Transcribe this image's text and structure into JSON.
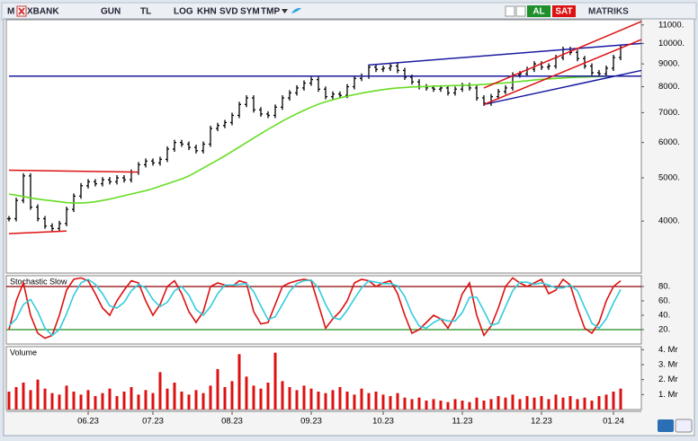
{
  "toolbar": {
    "menu": "M",
    "symbol": "XBANK",
    "buttons": [
      "GUN",
      "TL",
      "LOG",
      "KHN",
      "SVD",
      "SYM",
      "TMP"
    ],
    "buy": "AL",
    "sell": "SAT",
    "brand": "MATRIKS"
  },
  "chart_data": [
    {
      "type": "ohlc",
      "log_scale": true,
      "ylim": [
        3060,
        11300
      ],
      "yticks": [
        {
          "value": 4000,
          "label": "4000."
        },
        {
          "value": 5000,
          "label": "5000."
        },
        {
          "value": 6000,
          "label": "6000."
        },
        {
          "value": 7000,
          "label": "7000."
        },
        {
          "value": 8000,
          "label": "8000."
        },
        {
          "value": 9000,
          "label": "9000."
        },
        {
          "value": 10000,
          "label": "10000."
        },
        {
          "value": 11000,
          "label": "11000."
        }
      ],
      "series": [
        {
          "color": "#000000",
          "values": [
            4050,
            4450,
            5050,
            4300,
            4050,
            3900,
            3850,
            3950,
            4250,
            4550,
            4800,
            4900,
            4850,
            4950,
            4900,
            5000,
            4950,
            5150,
            5350,
            5450,
            5400,
            5500,
            5800,
            6000,
            5950,
            5850,
            5750,
            5950,
            6450,
            6550,
            6650,
            6900,
            7300,
            7550,
            7100,
            6950,
            6900,
            7200,
            7550,
            7750,
            7950,
            8150,
            8300,
            7900,
            7600,
            7700,
            7650,
            8000,
            8350,
            8450,
            8850,
            8750,
            8800,
            8900,
            8700,
            8400,
            8200,
            8000,
            7950,
            7900,
            7950,
            7750,
            7900,
            8050,
            7950,
            7550,
            7350,
            7600,
            7800,
            7950,
            8500,
            8550,
            8750,
            9000,
            8850,
            8900,
            9300,
            9700,
            9550,
            9250,
            8900,
            8600,
            8550,
            8800,
            9300,
            9800
          ]
        },
        {
          "color": "#66dd22",
          "values": [
            4600,
            4570,
            4540,
            4510,
            4480,
            4460,
            4440,
            4420,
            4400,
            4390,
            4390,
            4400,
            4420,
            4450,
            4480,
            4520,
            4560,
            4600,
            4640,
            4680,
            4730,
            4790,
            4850,
            4910,
            4970,
            5050,
            5150,
            5260,
            5370,
            5480,
            5600,
            5730,
            5860,
            6000,
            6140,
            6280,
            6420,
            6560,
            6700,
            6830,
            6960,
            7080,
            7200,
            7310,
            7400,
            7480,
            7550,
            7620,
            7680,
            7740,
            7790,
            7840,
            7880,
            7920,
            7950,
            7970,
            7990,
            8000,
            8010,
            8020,
            8030,
            8040,
            8050,
            8060,
            8070,
            8080,
            8100,
            8120,
            8140,
            8160,
            8190,
            8220,
            8250,
            8280,
            8310,
            8330,
            8350,
            8370,
            8390,
            8400,
            8410,
            8420,
            8430,
            8440,
            8450,
            8460
          ]
        }
      ],
      "trendlines": [
        {
          "color": "#dd1111",
          "points": [
            [
              0,
              5200
            ],
            [
              18,
              5150
            ]
          ]
        },
        {
          "color": "#dd1111",
          "points": [
            [
              0,
              3750
            ],
            [
              8,
              3800
            ]
          ]
        },
        {
          "color": "#1a1aa0",
          "points": [
            [
              0,
              8450
            ],
            [
              88,
              8450
            ]
          ]
        },
        {
          "color": "#1a1aa0",
          "points": [
            [
              50,
              8950
            ],
            [
              88,
              10000
            ]
          ]
        },
        {
          "color": "#1a1aa0",
          "points": [
            [
              66,
              7300
            ],
            [
              88,
              8700
            ]
          ]
        },
        {
          "color": "#dd1111",
          "points": [
            [
              66,
              7950
            ],
            [
              88,
              11200
            ]
          ]
        },
        {
          "color": "#dd1111",
          "points": [
            [
              66,
              7300
            ],
            [
              88,
              10200
            ]
          ]
        }
      ]
    },
    {
      "type": "line",
      "title": "Stochastic Slow",
      "ylim": [
        0,
        95
      ],
      "yticks": [
        {
          "value": 20,
          "label": "20."
        },
        {
          "value": 40,
          "label": "40."
        },
        {
          "value": 60,
          "label": "60."
        },
        {
          "value": 80,
          "label": "80."
        }
      ],
      "levels": [
        {
          "value": 80,
          "color": "#8b0000"
        },
        {
          "value": 20,
          "color": "#1e8b1e"
        }
      ],
      "series": [
        {
          "color": "#dd1111",
          "values": [
            20,
            60,
            85,
            40,
            15,
            8,
            12,
            40,
            75,
            90,
            92,
            88,
            70,
            50,
            40,
            60,
            75,
            88,
            85,
            60,
            40,
            55,
            80,
            88,
            70,
            45,
            30,
            45,
            80,
            85,
            82,
            80,
            88,
            85,
            45,
            28,
            30,
            55,
            80,
            85,
            88,
            90,
            88,
            55,
            22,
            35,
            45,
            60,
            85,
            90,
            88,
            80,
            85,
            88,
            70,
            40,
            15,
            20,
            30,
            40,
            35,
            22,
            40,
            70,
            85,
            40,
            12,
            25,
            50,
            80,
            92,
            85,
            80,
            85,
            90,
            70,
            75,
            90,
            82,
            50,
            22,
            15,
            30,
            60,
            80,
            88
          ]
        },
        {
          "color": "#33ccdd",
          "values": [
            25,
            35,
            55,
            62,
            45,
            22,
            12,
            20,
            42,
            68,
            85,
            90,
            83,
            70,
            53,
            50,
            58,
            74,
            83,
            78,
            62,
            52,
            58,
            74,
            80,
            68,
            48,
            40,
            52,
            70,
            82,
            82,
            83,
            84,
            73,
            53,
            34,
            38,
            55,
            73,
            84,
            88,
            89,
            78,
            55,
            37,
            34,
            47,
            63,
            78,
            88,
            86,
            84,
            84,
            81,
            66,
            42,
            25,
            22,
            30,
            35,
            32,
            32,
            44,
            65,
            65,
            46,
            26,
            29,
            52,
            74,
            86,
            86,
            83,
            85,
            82,
            78,
            78,
            82,
            74,
            51,
            29,
            22,
            35,
            57,
            76
          ]
        }
      ]
    },
    {
      "type": "bar",
      "title": "Volume",
      "ylim": [
        0,
        4.2
      ],
      "color": "#dd1111",
      "yticks": [
        {
          "value": 1,
          "label": "1. Mr"
        },
        {
          "value": 2,
          "label": "2. Mr"
        },
        {
          "value": 3,
          "label": "3. Mr"
        },
        {
          "value": 4,
          "label": "4. Mr"
        }
      ],
      "categories": [
        null,
        null,
        null,
        null,
        null,
        null,
        null,
        null,
        null,
        null,
        null,
        "06.23",
        null,
        null,
        null,
        null,
        null,
        null,
        null,
        null,
        "07.23",
        null,
        null,
        null,
        null,
        null,
        null,
        null,
        null,
        null,
        null,
        "08.23",
        null,
        null,
        null,
        null,
        null,
        null,
        null,
        null,
        null,
        null,
        "09.23",
        null,
        null,
        null,
        null,
        null,
        null,
        null,
        null,
        null,
        "10.23",
        null,
        null,
        null,
        null,
        null,
        null,
        null,
        null,
        null,
        null,
        "11.23",
        null,
        null,
        null,
        null,
        null,
        null,
        null,
        null,
        null,
        null,
        "12.23",
        null,
        null,
        null,
        null,
        null,
        null,
        null,
        null,
        null,
        "01.24",
        null
      ],
      "values": [
        1.2,
        1.5,
        1.8,
        1.3,
        2.0,
        1.4,
        1.1,
        1.0,
        1.6,
        1.2,
        1.0,
        1.3,
        0.9,
        1.1,
        1.4,
        0.9,
        1.2,
        1.5,
        1.0,
        1.3,
        1.1,
        2.5,
        1.4,
        1.8,
        1.2,
        1.0,
        1.3,
        1.1,
        1.6,
        2.7,
        1.5,
        1.9,
        3.7,
        2.2,
        1.6,
        1.4,
        1.8,
        3.8,
        1.9,
        1.5,
        1.3,
        1.6,
        1.4,
        1.2,
        1.1,
        1.3,
        1.5,
        1.2,
        1.0,
        1.4,
        1.1,
        1.2,
        1.0,
        0.9,
        1.1,
        0.8,
        0.7,
        0.8,
        0.6,
        0.7,
        0.6,
        0.5,
        0.7,
        0.6,
        0.5,
        0.8,
        0.6,
        0.7,
        0.9,
        0.8,
        1.0,
        0.7,
        0.9,
        0.8,
        0.9,
        0.7,
        1.0,
        0.8,
        0.9,
        0.7,
        0.8,
        0.6,
        0.9,
        1.0,
        1.2,
        1.4
      ]
    }
  ]
}
